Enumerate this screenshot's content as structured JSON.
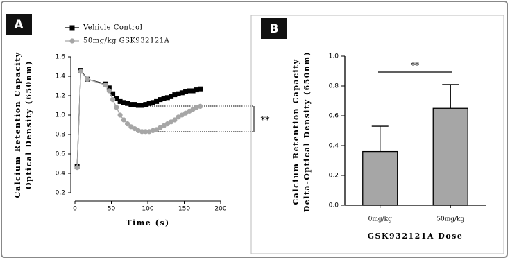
{
  "chart_data": [
    {
      "type": "line",
      "panel_label": "A",
      "ylabel": [
        "Calcium Retention Capacity",
        "Optical Density (650nm)"
      ],
      "xlabel": "Time (s)",
      "x": [
        3,
        8,
        17,
        42,
        47,
        52,
        57,
        62,
        67,
        72,
        77,
        82,
        87,
        92,
        97,
        102,
        107,
        112,
        117,
        122,
        127,
        132,
        137,
        142,
        147,
        152,
        157,
        162,
        167,
        172
      ],
      "series": [
        {
          "name": "Vehicle Control",
          "color": "#000000",
          "marker": "square",
          "values": [
            0.47,
            1.46,
            1.37,
            1.32,
            1.28,
            1.22,
            1.17,
            1.14,
            1.13,
            1.12,
            1.11,
            1.11,
            1.1,
            1.1,
            1.11,
            1.12,
            1.13,
            1.14,
            1.16,
            1.17,
            1.18,
            1.19,
            1.21,
            1.22,
            1.23,
            1.24,
            1.25,
            1.25,
            1.26,
            1.27
          ]
        },
        {
          "name": "50mg/kg GSK932121A",
          "color": "#a6a6a6",
          "marker": "circle",
          "values": [
            0.46,
            1.45,
            1.37,
            1.31,
            1.25,
            1.16,
            1.08,
            1.0,
            0.95,
            0.91,
            0.88,
            0.86,
            0.84,
            0.83,
            0.83,
            0.83,
            0.84,
            0.85,
            0.87,
            0.89,
            0.91,
            0.93,
            0.95,
            0.98,
            1.0,
            1.02,
            1.04,
            1.06,
            1.08,
            1.09
          ]
        }
      ],
      "xlim": [
        0,
        200
      ],
      "xticks": [
        0,
        50,
        100,
        150,
        200
      ],
      "ylim": [
        0.2,
        1.6
      ],
      "yticks": [
        0.2,
        0.4,
        0.6,
        0.8,
        {
          "value": 1,
          "label": "1.0"
        },
        1.2,
        1.4,
        1.6
      ],
      "annotation": "**"
    },
    {
      "type": "bar",
      "panel_label": "B",
      "ylabel": [
        "Calcium Retention Capacity",
        "Delta-Optical Density (650nm)"
      ],
      "xlabel": "GSK932121A Dose",
      "categories": [
        "0mg/kg",
        "50mg/kg"
      ],
      "values": [
        0.36,
        0.65
      ],
      "errors": [
        0.17,
        0.16
      ],
      "color": "#a6a6a6",
      "ylim": [
        0,
        1
      ],
      "yticks": [
        {
          "value": 0,
          "label": "0.0"
        },
        0.2,
        0.4,
        0.6,
        0.8,
        {
          "value": 1,
          "label": "1.0"
        }
      ],
      "annotation": "**"
    }
  ]
}
